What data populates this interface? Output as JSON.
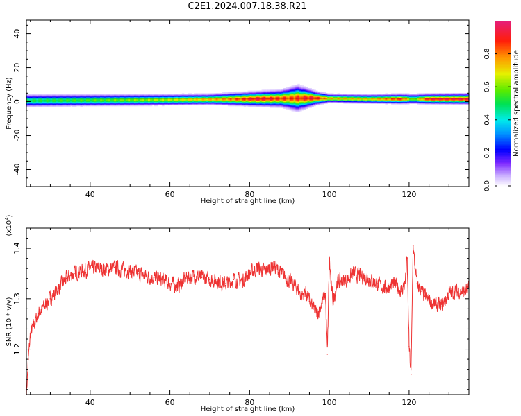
{
  "title": "C2E1.2024.007.18.38.R21",
  "chart_data": [
    {
      "type": "heatmap",
      "xlabel": "Height of straight line (km)",
      "ylabel": "Frequency (Hz)",
      "xlim": [
        24,
        135
      ],
      "ylim": [
        -50,
        48
      ],
      "x_ticks": [
        40,
        60,
        80,
        100,
        120
      ],
      "y_ticks": [
        40,
        20,
        0,
        -20,
        -40
      ],
      "y_tick_labels": [
        "40",
        "20",
        "0",
        "-20",
        "-40"
      ],
      "colorbar": {
        "label": "Normalized spectral amplitude",
        "range": [
          0,
          1
        ],
        "ticks": [
          0.0,
          0.2,
          0.4,
          0.6,
          0.8
        ],
        "tick_labels": [
          "0.0",
          "0.2",
          "0.4",
          "0.6",
          "0.8"
        ]
      },
      "band": {
        "center_hz": [
          [
            24,
            0.5
          ],
          [
            60,
            1
          ],
          [
            80,
            1.5
          ],
          [
            95,
            2
          ],
          [
            110,
            1.5
          ],
          [
            135,
            1.5
          ]
        ],
        "half_width_hz": [
          [
            24,
            3
          ],
          [
            70,
            2.5
          ],
          [
            88,
            4
          ],
          [
            92,
            6
          ],
          [
            97,
            3
          ],
          [
            100,
            2
          ],
          [
            135,
            2.5
          ]
        ],
        "peak_amplitude": [
          [
            24,
            0.55
          ],
          [
            40,
            0.6
          ],
          [
            60,
            0.7
          ],
          [
            75,
            0.85
          ],
          [
            82,
            1.0
          ],
          [
            90,
            0.9
          ],
          [
            96,
            1.0
          ],
          [
            100,
            0.8
          ],
          [
            110,
            0.75
          ],
          [
            118,
            0.95
          ],
          [
            121,
            0.6
          ],
          [
            125,
            1.0
          ],
          [
            135,
            1.0
          ]
        ]
      }
    },
    {
      "type": "line",
      "xlabel": "Height of straight line (km)",
      "ylabel": "SNR (10 * v/v)",
      "scale_label": "(x10",
      "scale_exponent": "4",
      "scale_suffix": ")",
      "xlim": [
        24,
        135
      ],
      "ylim": [
        11100,
        14400
      ],
      "x_ticks": [
        40,
        60,
        80,
        100,
        120
      ],
      "y_ticks": [
        12000,
        13000,
        14000
      ],
      "y_tick_labels": [
        "1.2",
        "1.3",
        "1.4"
      ],
      "color": "#ee3333",
      "series": [
        {
          "x": [
            24.0,
            24.5,
            25.0,
            26.0,
            27.0,
            28.0,
            29.0,
            30.0,
            32.0,
            34.0,
            36.0,
            38.0,
            40.0,
            42.0,
            44.0,
            46.0,
            48.0,
            50.0,
            52.0,
            54.0,
            56.0,
            58.0,
            60.0,
            62.0,
            64.0,
            66.0,
            68.0,
            70.0,
            72.0,
            74.0,
            76.0,
            78.0,
            80.0,
            82.0,
            84.0,
            86.0,
            88.0,
            90.0,
            92.0,
            93.0,
            94.0,
            95.0,
            96.0,
            97.0,
            98.0,
            99.0,
            99.5,
            100.0,
            100.5,
            101.0,
            102.0,
            104.0,
            106.0,
            108.0,
            110.0,
            112.0,
            114.0,
            116.0,
            117.0,
            118.0,
            119.0,
            119.5,
            120.0,
            120.5,
            121.0,
            121.5,
            122.0,
            123.0,
            124.0,
            126.0,
            128.0,
            129.0,
            130.0,
            132.0,
            134.0,
            135.0
          ],
          "values": [
            11100,
            11800,
            12300,
            12500,
            12700,
            12800,
            12900,
            13000,
            13200,
            13400,
            13500,
            13550,
            13600,
            13600,
            13580,
            13620,
            13580,
            13560,
            13500,
            13450,
            13420,
            13380,
            13300,
            13250,
            13400,
            13450,
            13420,
            13380,
            13350,
            13300,
            13380,
            13350,
            13500,
            13600,
            13550,
            13650,
            13500,
            13350,
            13200,
            13050,
            13150,
            12950,
            12800,
            12700,
            12900,
            13100,
            11900,
            13800,
            13200,
            12950,
            13350,
            13350,
            13500,
            13450,
            13400,
            13300,
            13200,
            13300,
            13250,
            13150,
            13300,
            13800,
            12050,
            11500,
            14050,
            13600,
            13300,
            13150,
            13050,
            12900,
            12850,
            12950,
            13100,
            13150,
            13150,
            13200
          ]
        }
      ]
    }
  ]
}
